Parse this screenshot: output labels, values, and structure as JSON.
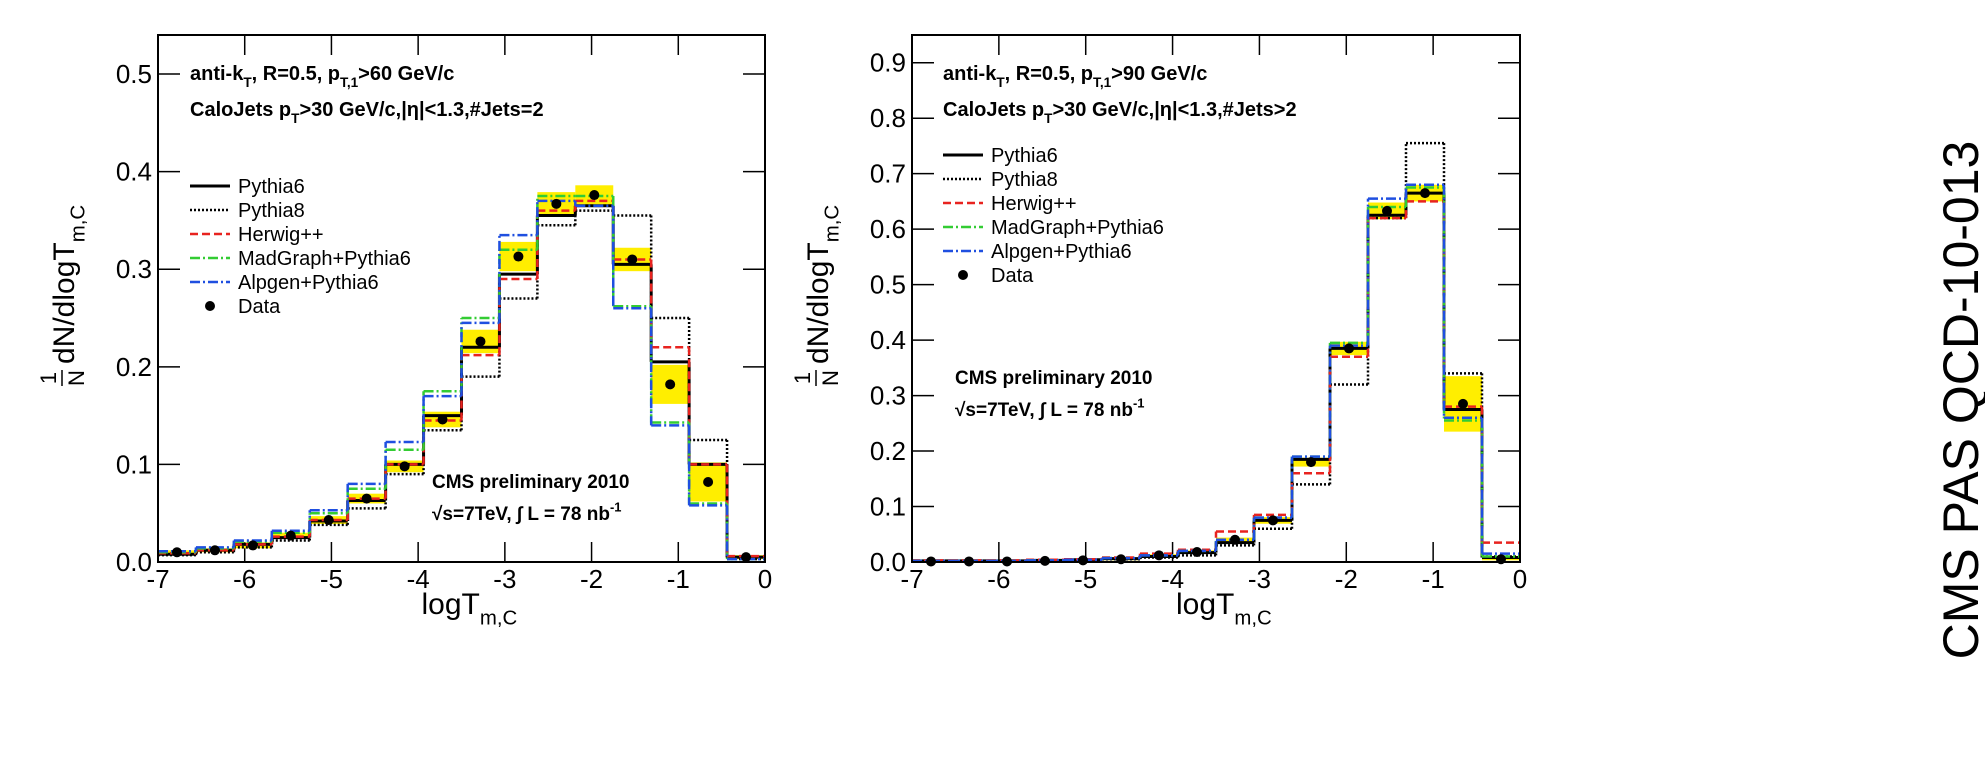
{
  "side_label": "CMS PAS QCD-10-013",
  "chart_data": [
    {
      "type": "histogram",
      "annotations": [
        [
          {
            "text": "anti-k"
          },
          {
            "text": "T",
            "baseline": "sub"
          },
          {
            "text": ", R=0.5, p"
          },
          {
            "text": "T,1",
            "baseline": "sub"
          },
          {
            "text": ">60 GeV/c"
          }
        ],
        [
          {
            "text": "CaloJets p"
          },
          {
            "text": "T",
            "baseline": "sub"
          },
          {
            "text": ">30 GeV/c,|η|<1.3,#Jets=2"
          }
        ]
      ],
      "cms_text": [
        [
          {
            "text": "CMS preliminary 2010"
          }
        ],
        [
          {
            "text": "√s=7TeV, ∫ L = 78 nb"
          },
          {
            "text": "-1",
            "baseline": "super"
          }
        ]
      ],
      "xlabel": [
        {
          "text": "logT"
        },
        {
          "text": "m,C",
          "baseline": "sub"
        }
      ],
      "ylabel": {
        "numerator": "1",
        "denominator": "N",
        "segments": [
          {
            "text": "dN/dlogT"
          },
          {
            "text": "m,C",
            "baseline": "sub"
          }
        ]
      },
      "bins": [
        -7,
        -6.5625,
        -6.125,
        -5.6875,
        -5.25,
        -4.8125,
        -4.375,
        -3.9375,
        -3.5,
        -3.0625,
        -2.625,
        -2.1875,
        -1.75,
        -1.3125,
        -0.875,
        -0.4375,
        0
      ],
      "xlim": [
        -7,
        0
      ],
      "ylim": [
        0,
        0.54
      ],
      "xticks": [
        -7,
        -6,
        -5,
        -4,
        -3,
        -2,
        -1,
        0
      ],
      "yticks": [
        {
          "value": 0,
          "label": "0.0"
        },
        0.1,
        0.2,
        0.3,
        0.4,
        0.5
      ],
      "legend": "upper left",
      "series": [
        {
          "name": "Pythia6",
          "color": "#000000",
          "dash": "solid",
          "values": [
            0.008,
            0.012,
            0.018,
            0.025,
            0.042,
            0.063,
            0.1,
            0.15,
            0.22,
            0.295,
            0.355,
            0.365,
            0.305,
            0.205,
            0.1,
            0.005
          ]
        },
        {
          "name": "Pythia8",
          "color": "#000000",
          "dash": "dotted",
          "values": [
            0.007,
            0.01,
            0.015,
            0.022,
            0.038,
            0.055,
            0.09,
            0.135,
            0.19,
            0.27,
            0.345,
            0.36,
            0.355,
            0.25,
            0.125,
            0.003
          ]
        },
        {
          "name": "Herwig++",
          "color": "#e8231f",
          "dash": "dashed",
          "values": [
            0.009,
            0.012,
            0.018,
            0.026,
            0.043,
            0.065,
            0.1,
            0.145,
            0.212,
            0.29,
            0.36,
            0.37,
            0.31,
            0.22,
            0.1,
            0.006
          ]
        },
        {
          "name": "MadGraph+Pythia6",
          "color": "#33cc33",
          "dash": "dashdot",
          "values": [
            0.01,
            0.014,
            0.021,
            0.03,
            0.05,
            0.075,
            0.115,
            0.175,
            0.25,
            0.32,
            0.375,
            0.375,
            0.262,
            0.143,
            0.06,
            0.003
          ]
        },
        {
          "name": "Alpgen+Pythia6",
          "color": "#1f4fe0",
          "dash": "dashdot",
          "values": [
            0.011,
            0.015,
            0.022,
            0.032,
            0.053,
            0.08,
            0.123,
            0.17,
            0.245,
            0.335,
            0.37,
            0.365,
            0.26,
            0.14,
            0.058,
            0.003
          ]
        }
      ],
      "data": {
        "name": "Data",
        "color": "#000000",
        "band_color": "#ffee00",
        "values": [
          0.01,
          0.012,
          0.017,
          0.027,
          0.043,
          0.065,
          0.098,
          0.146,
          0.226,
          0.313,
          0.367,
          0.376,
          0.31,
          0.182,
          0.082,
          0.005
        ],
        "errors": [
          0.002,
          0.002,
          0.003,
          0.003,
          0.004,
          0.005,
          0.006,
          0.008,
          0.012,
          0.015,
          0.012,
          0.01,
          0.012,
          0.02,
          0.02,
          0.002
        ]
      }
    },
    {
      "type": "histogram",
      "annotations": [
        [
          {
            "text": "anti-k"
          },
          {
            "text": "T",
            "baseline": "sub"
          },
          {
            "text": ", R=0.5, p"
          },
          {
            "text": "T,1",
            "baseline": "sub"
          },
          {
            "text": ">90 GeV/c"
          }
        ],
        [
          {
            "text": "CaloJets p"
          },
          {
            "text": "T",
            "baseline": "sub"
          },
          {
            "text": ">30 GeV/c,|η|<1.3,#Jets>2"
          }
        ]
      ],
      "cms_text": [
        [
          {
            "text": "CMS preliminary 2010"
          }
        ],
        [
          {
            "text": "√s=7TeV, ∫ L = 78 nb"
          },
          {
            "text": "-1",
            "baseline": "super"
          }
        ]
      ],
      "xlabel": [
        {
          "text": "logT"
        },
        {
          "text": "m,C",
          "baseline": "sub"
        }
      ],
      "ylabel": {
        "numerator": "1",
        "denominator": "N",
        "segments": [
          {
            "text": "dN/dlogT"
          },
          {
            "text": "m,C",
            "baseline": "sub"
          }
        ]
      },
      "bins": [
        -7,
        -6.5625,
        -6.125,
        -5.6875,
        -5.25,
        -4.8125,
        -4.375,
        -3.9375,
        -3.5,
        -3.0625,
        -2.625,
        -2.1875,
        -1.75,
        -1.3125,
        -0.875,
        -0.4375,
        0
      ],
      "xlim": [
        -7,
        0
      ],
      "ylim": [
        0,
        0.95
      ],
      "xticks": [
        -7,
        -6,
        -5,
        -4,
        -3,
        -2,
        -1,
        0
      ],
      "yticks": [
        {
          "value": 0,
          "label": "0.0"
        },
        0.1,
        0.2,
        0.3,
        0.4,
        0.5,
        0.6,
        0.7,
        0.8,
        0.9
      ],
      "legend": "upper left",
      "series": [
        {
          "name": "Pythia6",
          "color": "#000000",
          "dash": "solid",
          "values": [
            0.002,
            0.002,
            0.002,
            0.003,
            0.004,
            0.006,
            0.01,
            0.017,
            0.035,
            0.075,
            0.185,
            0.385,
            0.625,
            0.665,
            0.275,
            0.008
          ]
        },
        {
          "name": "Pythia8",
          "color": "#000000",
          "dash": "dotted",
          "values": [
            0.002,
            0.002,
            0.002,
            0.002,
            0.003,
            0.005,
            0.008,
            0.012,
            0.03,
            0.06,
            0.14,
            0.32,
            0.62,
            0.755,
            0.34,
            0.01
          ]
        },
        {
          "name": "Herwig++",
          "color": "#e8231f",
          "dash": "dashed",
          "values": [
            0.003,
            0.003,
            0.003,
            0.004,
            0.005,
            0.008,
            0.015,
            0.022,
            0.055,
            0.085,
            0.16,
            0.37,
            0.62,
            0.65,
            0.28,
            0.035
          ]
        },
        {
          "name": "MadGraph+Pythia6",
          "color": "#33cc33",
          "dash": "dashdot",
          "values": [
            0.002,
            0.002,
            0.002,
            0.003,
            0.004,
            0.007,
            0.012,
            0.02,
            0.04,
            0.08,
            0.19,
            0.395,
            0.64,
            0.675,
            0.255,
            0.01
          ]
        },
        {
          "name": "Alpgen+Pythia6",
          "color": "#1f4fe0",
          "dash": "dashdot",
          "values": [
            0.002,
            0.002,
            0.002,
            0.003,
            0.004,
            0.007,
            0.012,
            0.02,
            0.04,
            0.08,
            0.19,
            0.39,
            0.655,
            0.68,
            0.26,
            0.015
          ]
        }
      ],
      "data": {
        "name": "Data",
        "color": "#000000",
        "band_color": "#ffee00",
        "values": [
          0.001,
          0.001,
          0.001,
          0.002,
          0.003,
          0.005,
          0.012,
          0.018,
          0.04,
          0.075,
          0.18,
          0.385,
          0.633,
          0.665,
          0.285,
          0.005
        ],
        "errors": [
          0.001,
          0.001,
          0.001,
          0.001,
          0.001,
          0.002,
          0.002,
          0.003,
          0.004,
          0.006,
          0.008,
          0.012,
          0.015,
          0.015,
          0.05,
          0.002
        ]
      }
    }
  ]
}
